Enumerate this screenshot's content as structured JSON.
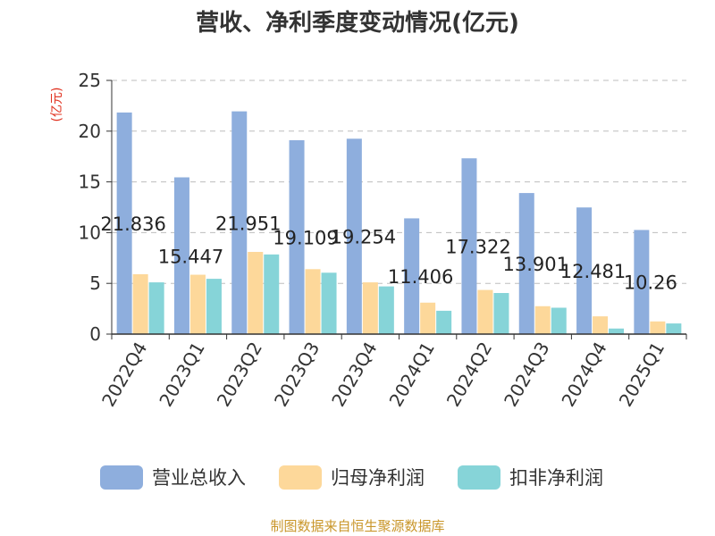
{
  "chart_data": {
    "type": "bar",
    "title": "营收、净利季度变动情况(亿元)",
    "ylabel": "(亿元)",
    "ylim": [
      0,
      25
    ],
    "yticks": [
      0,
      5,
      10,
      15,
      20,
      25
    ],
    "categories": [
      "2022Q4",
      "2023Q1",
      "2023Q2",
      "2023Q3",
      "2023Q4",
      "2024Q1",
      "2024Q2",
      "2024Q3",
      "2024Q4",
      "2025Q1"
    ],
    "series": [
      {
        "name": "营业总收入",
        "color": "#8eaedd",
        "values": [
          21.836,
          15.447,
          21.951,
          19.109,
          19.254,
          11.406,
          17.322,
          13.901,
          12.481,
          10.26
        ]
      },
      {
        "name": "归母净利润",
        "color": "#fdd89a",
        "values": [
          5.9,
          5.85,
          8.1,
          6.4,
          5.1,
          3.1,
          4.35,
          2.75,
          1.75,
          1.25
        ]
      },
      {
        "name": "扣非净利润",
        "color": "#86d4d8",
        "values": [
          5.1,
          5.45,
          7.85,
          6.05,
          4.7,
          2.3,
          4.05,
          2.6,
          0.55,
          1.05
        ]
      }
    ],
    "data_labels": [
      "21.836",
      "15.447",
      "21.951",
      "19.109",
      "19.254",
      "11.406",
      "17.322",
      "13.901",
      "12.481",
      "10.26"
    ],
    "grid": true,
    "legend_position": "bottom",
    "source": "制图数据来自恒生聚源数据库"
  }
}
